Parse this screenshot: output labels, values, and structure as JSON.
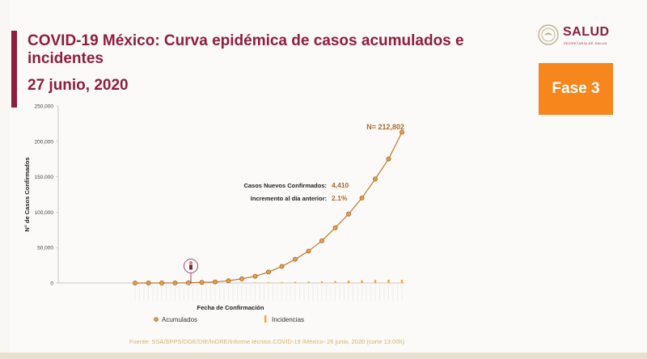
{
  "header": {
    "title": "COVID-19 México: Curva epidémica de casos acumulados e incidentes",
    "date": "27 junio, 2020"
  },
  "brand": {
    "logo_text": "SALUD",
    "logo_subtext": "SECRETARÍA DE SALUD",
    "badge": "Fase 3",
    "colors": {
      "primary": "#8e1e3d",
      "badge": "#f7861c",
      "cumulative": "#c0782a",
      "incidence": "#f2a33a"
    }
  },
  "footer": {
    "source": "Fuente: SSA/SPPS/DGE/DIE/InDRE/Informe técnico.COVID-19 /México- 26 junio, 2020 (corte 13:00h)"
  },
  "chart_data": {
    "type": "line",
    "title": "",
    "xlabel": "Fecha de Confirmación",
    "ylabel": "N° de Casos Confirmados",
    "ylim": [
      0,
      250000
    ],
    "y_ticks": [
      "0",
      "50,000",
      "100,000",
      "150,000",
      "200,000",
      "250,000"
    ],
    "grid": false,
    "legend_position": "bottom",
    "annotations": {
      "total": "N= 212,802",
      "new_cases_label": "Casos Nuevos Confirmados:",
      "new_cases_value": "4,410",
      "increase_label": "Incremento al día anterior:",
      "increase_value": "2.1%"
    },
    "x_start": "2020-02-27",
    "x_end": "2020-06-26",
    "series": [
      {
        "name": "Acumulados",
        "marker": "circle",
        "x": [
          "2020-02-27",
          "2020-03-04",
          "2020-03-10",
          "2020-03-16",
          "2020-03-22",
          "2020-03-28",
          "2020-04-03",
          "2020-04-09",
          "2020-04-15",
          "2020-04-21",
          "2020-04-27",
          "2020-05-03",
          "2020-05-09",
          "2020-05-15",
          "2020-05-21",
          "2020-05-27",
          "2020-06-02",
          "2020-06-08",
          "2020-06-14",
          "2020-06-20",
          "2020-06-26"
        ],
        "values": [
          1,
          5,
          7,
          53,
          316,
          848,
          1510,
          3181,
          5847,
          9501,
          15529,
          23471,
          33460,
          45032,
          59567,
          78023,
          97326,
          120102,
          146837,
          175202,
          212802
        ]
      },
      {
        "name": "Incidencias",
        "marker": "bar",
        "x": [
          "2020-02-27",
          "2020-03-04",
          "2020-03-10",
          "2020-03-16",
          "2020-03-22",
          "2020-03-28",
          "2020-04-03",
          "2020-04-09",
          "2020-04-15",
          "2020-04-21",
          "2020-04-27",
          "2020-05-03",
          "2020-05-09",
          "2020-05-15",
          "2020-05-21",
          "2020-05-27",
          "2020-06-02",
          "2020-06-08",
          "2020-06-14",
          "2020-06-20",
          "2020-06-26"
        ],
        "values": [
          1,
          1,
          1,
          11,
          60,
          110,
          170,
          290,
          440,
          690,
          1000,
          1360,
          1700,
          2000,
          2280,
          2800,
          3400,
          3800,
          4300,
          4600,
          4410
        ]
      }
    ]
  }
}
